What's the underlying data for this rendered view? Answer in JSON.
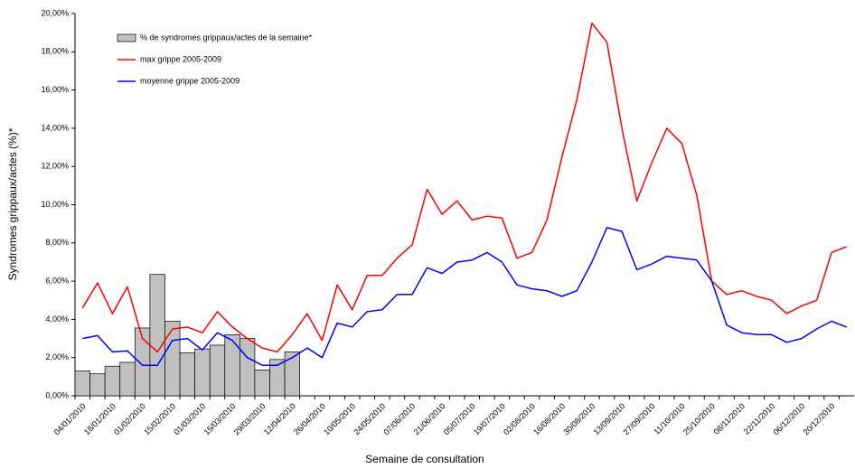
{
  "chart_data": {
    "type": "bar",
    "x_label": "Semaine de consultation",
    "y_label": "Syndromes grippaux/actes (%)*",
    "categories": [
      "04/01/2010",
      null,
      "18/01/2010",
      null,
      "01/02/2010",
      null,
      "15/02/2010",
      null,
      "01/03/2010",
      null,
      "15/03/2010",
      null,
      "29/03/2010",
      null,
      "12/04/2010",
      null,
      "26/04/2010",
      null,
      "10/05/2010",
      null,
      "24/05/2010",
      null,
      "07/06/2010",
      null,
      "21/06/2010",
      null,
      "05/07/2010",
      null,
      "19/07/2010",
      null,
      "02/08/2010",
      null,
      "16/08/2010",
      null,
      "30/08/2010",
      null,
      "13/09/2010",
      null,
      "27/09/2010",
      null,
      "11/10/2010",
      null,
      "25/10/2010",
      null,
      "08/11/2010",
      null,
      "22/11/2010",
      null,
      "06/12/2010",
      null,
      "20/12/2010",
      null
    ],
    "ylim": [
      0,
      20
    ],
    "yticks": [
      {
        "value": 0,
        "label": "0,00%"
      },
      {
        "value": 2,
        "label": "2,00%"
      },
      {
        "value": 4,
        "label": "4,00%"
      },
      {
        "value": 6,
        "label": "6,00%"
      },
      {
        "value": 8,
        "label": "8,00%"
      },
      {
        "value": 10,
        "label": "10,00%"
      },
      {
        "value": 12,
        "label": "12,00%"
      },
      {
        "value": 14,
        "label": "14,00%"
      },
      {
        "value": 16,
        "label": "16,00%"
      },
      {
        "value": 18,
        "label": "18,00%"
      },
      {
        "value": 20,
        "label": "20,00%"
      }
    ],
    "grid": false,
    "legend": "upper left",
    "series": [
      {
        "name": "% de syndromes grippaux/actes de la semaine*",
        "type": "bar",
        "color": "#c0c0c0",
        "values": [
          1.3,
          1.15,
          1.55,
          1.75,
          3.55,
          6.35,
          3.9,
          2.25,
          2.45,
          2.65,
          3.2,
          3.0,
          1.35,
          1.9,
          2.3,
          null,
          null,
          null,
          null,
          null,
          null,
          null,
          null,
          null,
          null,
          null,
          null,
          null,
          null,
          null,
          null,
          null,
          null,
          null,
          null,
          null,
          null,
          null,
          null,
          null,
          null,
          null,
          null,
          null,
          null,
          null,
          null,
          null,
          null,
          null,
          null,
          null
        ]
      },
      {
        "name": "max grippe 2005-2009",
        "type": "line",
        "color": "#ff0000",
        "values": [
          4.6,
          5.9,
          4.3,
          5.7,
          3.0,
          2.3,
          3.5,
          3.6,
          3.3,
          4.4,
          3.6,
          3.0,
          2.5,
          2.3,
          3.2,
          4.3,
          2.9,
          5.8,
          4.5,
          6.3,
          6.3,
          7.2,
          7.9,
          10.8,
          9.5,
          10.2,
          9.2,
          9.4,
          9.3,
          7.2,
          7.5,
          9.2,
          12.5,
          15.5,
          19.5,
          18.5,
          14.0,
          10.2,
          12.2,
          14.0,
          13.2,
          10.5,
          6.0,
          5.3,
          5.5,
          5.2,
          5.0,
          4.3,
          4.7,
          5.0,
          7.5,
          7.8
        ]
      },
      {
        "name": "moyenne grippe 2005-2009",
        "type": "line",
        "color": "#0000ff",
        "values": [
          3.0,
          3.15,
          2.3,
          2.35,
          1.6,
          1.6,
          2.9,
          3.0,
          2.4,
          3.3,
          2.9,
          2.0,
          1.6,
          1.6,
          2.0,
          2.5,
          2.0,
          3.8,
          3.6,
          4.4,
          4.5,
          5.3,
          5.3,
          6.7,
          6.4,
          7.0,
          7.1,
          7.5,
          7.0,
          5.8,
          5.6,
          5.5,
          5.2,
          5.5,
          7.0,
          8.8,
          8.6,
          6.6,
          6.9,
          7.3,
          7.2,
          7.1,
          6.0,
          3.7,
          3.3,
          3.2,
          3.2,
          2.8,
          3.0,
          3.5,
          3.9,
          3.6
        ]
      }
    ]
  }
}
